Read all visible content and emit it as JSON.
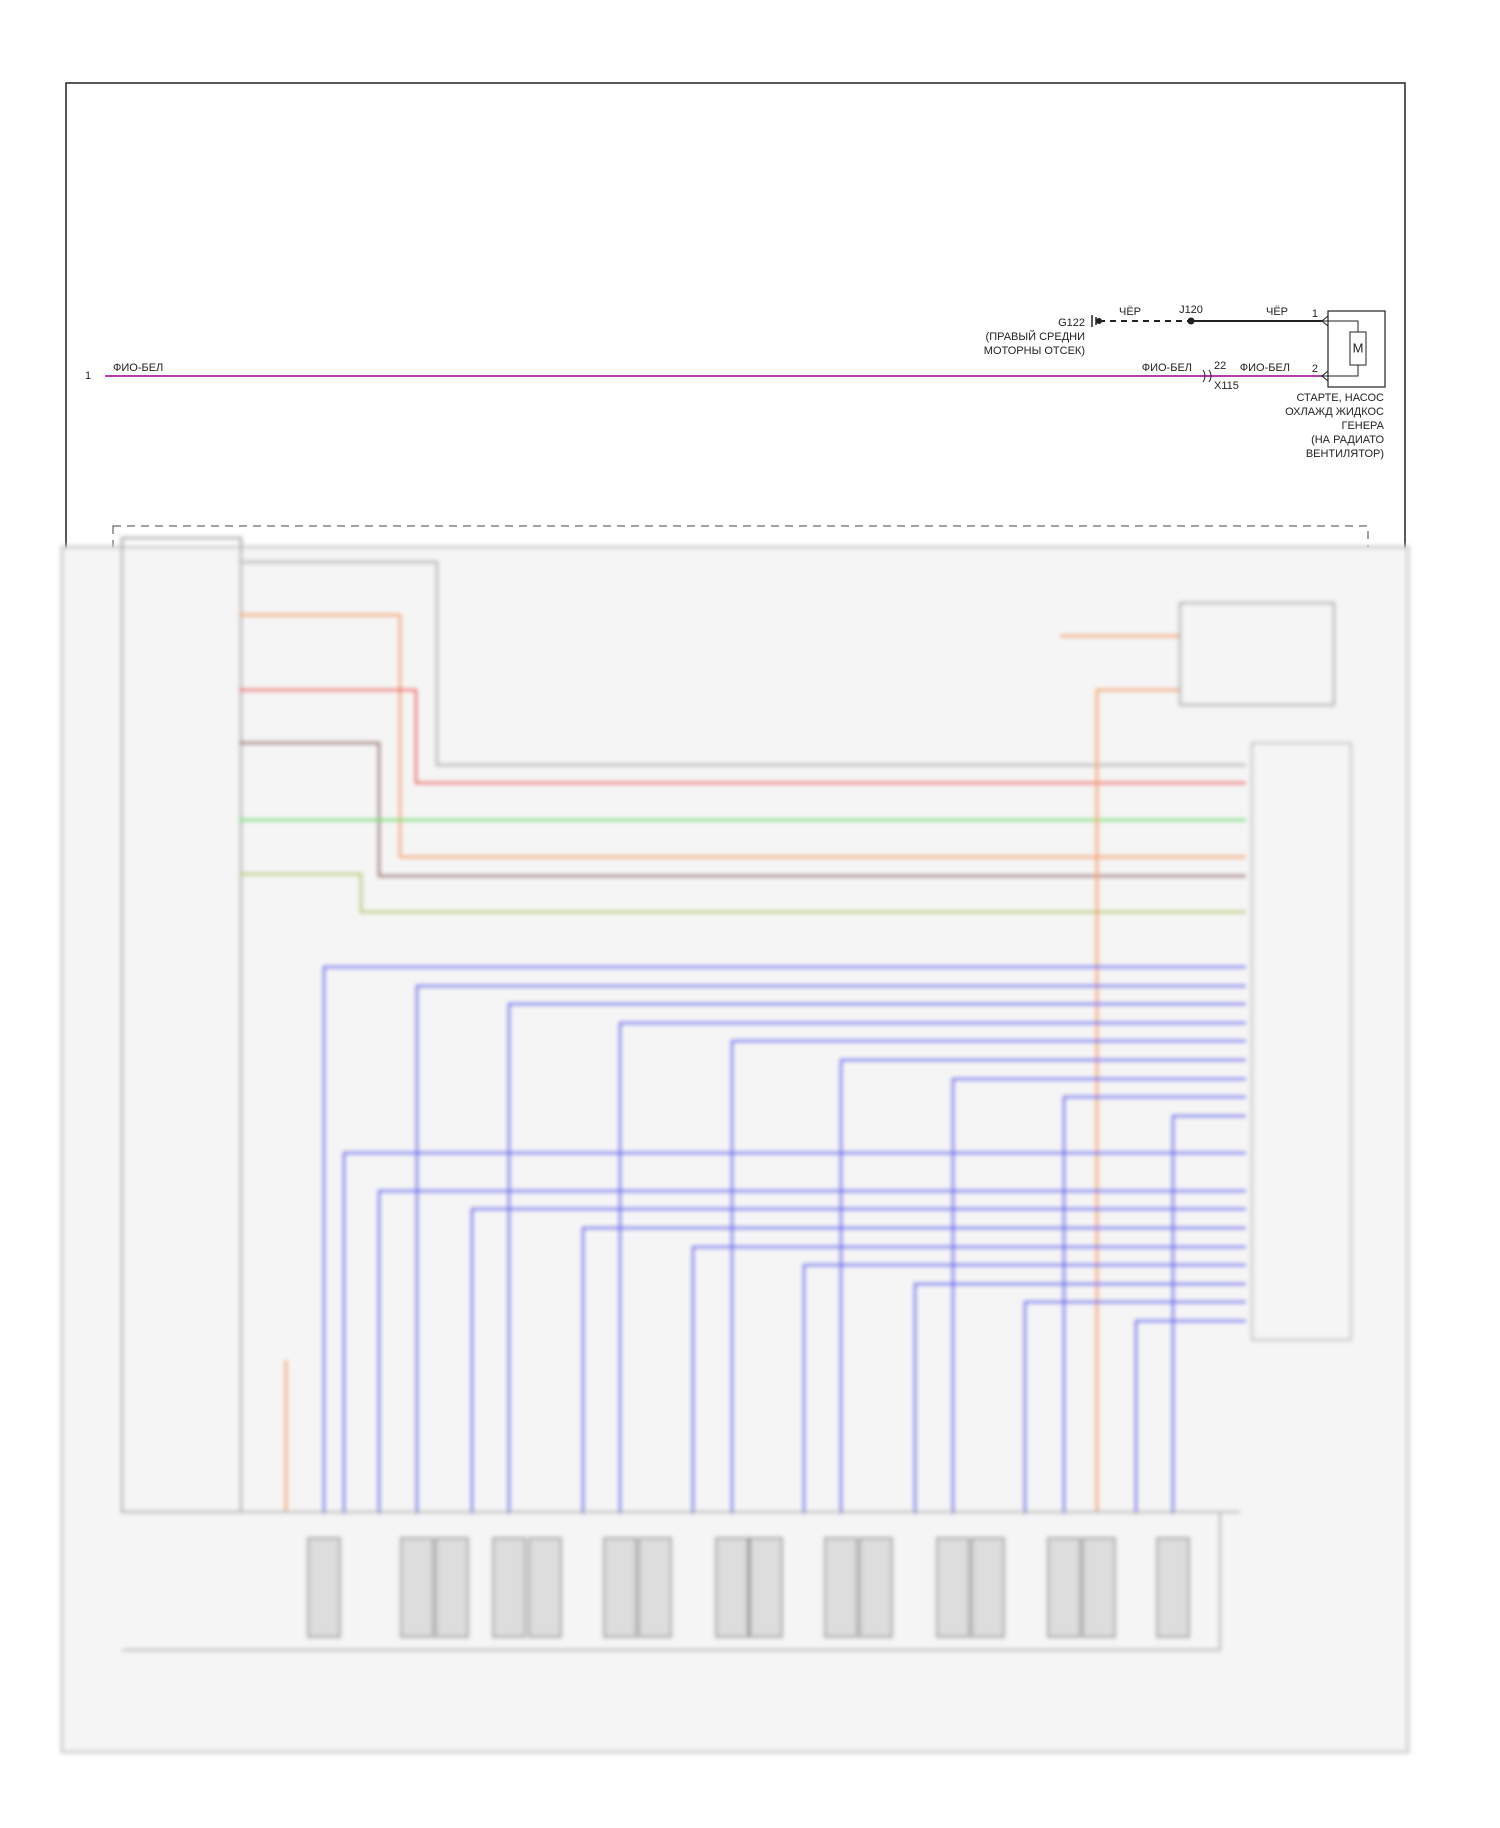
{
  "top_circuit": {
    "left_pin": "1",
    "left_wire_color": "ФИО-БЕЛ",
    "ground": {
      "id": "G122",
      "location": [
        "(ПРАВЫЙ СРЕДНИ",
        "МОТОРНЫ ОТСЕК)"
      ]
    },
    "ground_wire_color": "ЧЁР",
    "splice": "J120",
    "splice_wire_color": "ЧЁР",
    "connector": {
      "pin": "22",
      "id": "X115",
      "wire_color_in": "ФИО-БЕЛ",
      "wire_color_out": "ФИО-БЕЛ"
    },
    "component": {
      "pins": [
        "1",
        "2"
      ],
      "symbol": "M",
      "label": [
        "СТАРТЕ, НАСОС",
        "ОХЛАЖД ЖИДКОС",
        "ГЕНЕРА",
        "(НА РАДИАТО",
        "ВЕНТИЛЯТОР)"
      ]
    }
  }
}
